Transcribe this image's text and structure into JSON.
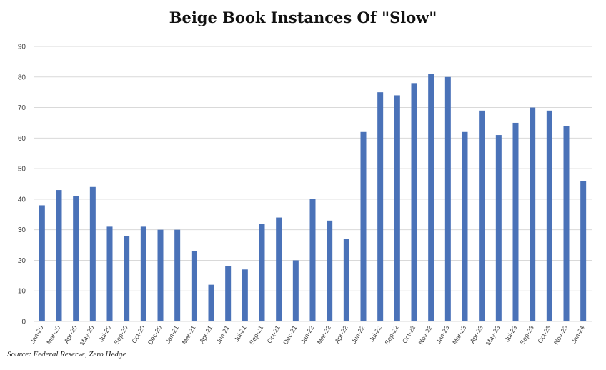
{
  "chart_data": {
    "type": "bar",
    "title": "Beige Book Instances Of  \"Slow\"",
    "source": "Source: Federal Reserve, Zero Hedge",
    "categories": [
      "Jan-20",
      "Mar-20",
      "Apr-20",
      "May-20",
      "Jul-20",
      "Sep-20",
      "Oct-20",
      "Dec-20",
      "Jan-21",
      "Mar-21",
      "Apr-21",
      "Jun-21",
      "Jul-21",
      "Sep-21",
      "Oct-21",
      "Dec-21",
      "Jan-22",
      "Mar-22",
      "Apr-22",
      "Jun-22",
      "Jul-22",
      "Sep-22",
      "Oct-22",
      "Nov-22",
      "Jan-23",
      "Mar-23",
      "Apr-23",
      "May-23",
      "Jul-23",
      "Sep-23",
      "Oct-23",
      "Nov-23",
      "Jan-24"
    ],
    "values": [
      38,
      43,
      41,
      44,
      31,
      28,
      31,
      30,
      30,
      23,
      12,
      18,
      17,
      32,
      34,
      20,
      40,
      33,
      27,
      62,
      75,
      74,
      78,
      81,
      80,
      62,
      69,
      61,
      65,
      70,
      69,
      64,
      46
    ],
    "ylim": [
      0,
      90
    ],
    "yticks": [
      0,
      10,
      20,
      30,
      40,
      50,
      60,
      70,
      80,
      90
    ],
    "grid": true,
    "bar_color": "#4a72b8",
    "grid_color": "#d9d9d9",
    "legend": "none"
  }
}
